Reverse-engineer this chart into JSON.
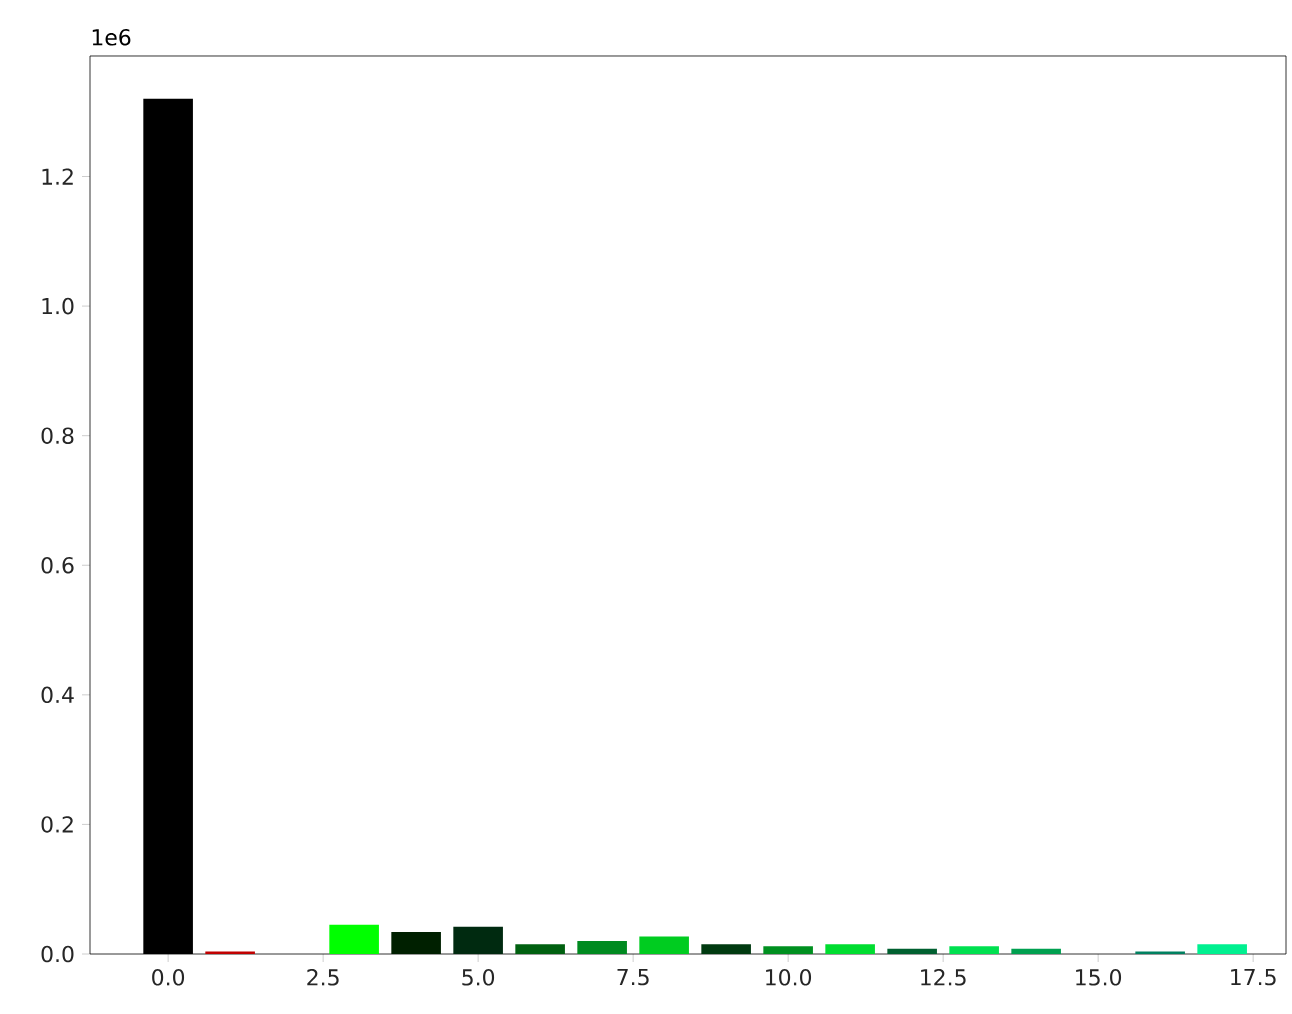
{
  "chart_data": {
    "type": "bar",
    "x": [
      0,
      1,
      2,
      3,
      4,
      5,
      6,
      7,
      8,
      9,
      10,
      11,
      12,
      13,
      14,
      15,
      16,
      17
    ],
    "values": [
      1.32,
      0.004,
      0,
      0.045,
      0.034,
      0.042,
      0.015,
      0.02,
      0.027,
      0.015,
      0.012,
      0.015,
      0.008,
      0.012,
      0.008,
      0,
      0.004,
      0.015
    ],
    "colors": [
      "#000000",
      "#c00000",
      "#000000",
      "#00ff00",
      "#002000",
      "#002a10",
      "#006010",
      "#008a20",
      "#00cc20",
      "#003a10",
      "#009020",
      "#00dd30",
      "#006030",
      "#00e050",
      "#00a050",
      "#000000",
      "#008060",
      "#00f090"
    ],
    "xlim": [
      -1.26,
      18.03
    ],
    "ylim": [
      0,
      1.386
    ],
    "xticks": [
      {
        "value": 0,
        "label": "0.0"
      },
      {
        "value": 2.5,
        "label": "2.5"
      },
      {
        "value": 5,
        "label": "5.0"
      },
      {
        "value": 7.5,
        "label": "7.5"
      },
      {
        "value": 10,
        "label": "10.0"
      },
      {
        "value": 12.5,
        "label": "12.5"
      },
      {
        "value": 15,
        "label": "15.0"
      },
      {
        "value": 17.5,
        "label": "17.5"
      }
    ],
    "yticks": [
      {
        "value": 0,
        "label": "0.0"
      },
      {
        "value": 0.2,
        "label": "0.2"
      },
      {
        "value": 0.4,
        "label": "0.4"
      },
      {
        "value": 0.6,
        "label": "0.6"
      },
      {
        "value": 0.8,
        "label": "0.8"
      },
      {
        "value": 1.0,
        "label": "1.0"
      },
      {
        "value": 1.2,
        "label": "1.2"
      }
    ],
    "annotations": [
      "1e6"
    ]
  }
}
